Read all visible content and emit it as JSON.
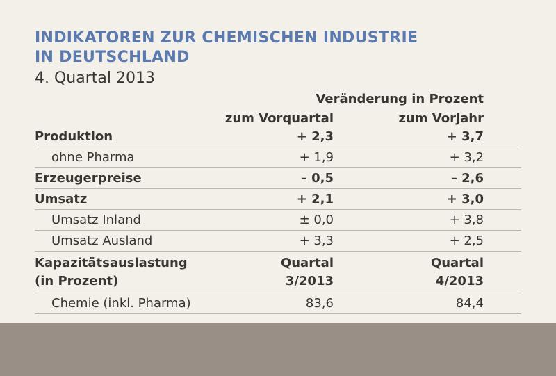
{
  "title": {
    "line1": "INDIKATOREN ZUR CHEMISCHEN INDUSTRIE",
    "line2": "IN DEUTSCHLAND"
  },
  "subtitle": "4. Quartal 2013",
  "header": {
    "main": "Veränderung in Prozent",
    "col1": "zum Vorquartal",
    "col2": "zum Vorjahr"
  },
  "rows": [
    {
      "label": "Produktion",
      "v1": "+ 2,3",
      "v2": "+ 3,7"
    },
    {
      "label": "ohne Pharma",
      "v1": "+ 1,9",
      "v2": "+ 3,2"
    },
    {
      "label": "Erzeugerpreise",
      "v1": "– 0,5",
      "v2": "– 2,6"
    },
    {
      "label": "Umsatz",
      "v1": "+ 2,1",
      "v2": "+ 3,0"
    },
    {
      "label": "Umsatz Inland",
      "v1": "± 0,0",
      "v2": "+ 3,8"
    },
    {
      "label": "Umsatz Ausland",
      "v1": "+ 3,3",
      "v2": "+ 2,5"
    }
  ],
  "capacity": {
    "label_line1": "Kapazitätsauslastung",
    "label_line2": "(in Prozent)",
    "col1_line1": "Quartal",
    "col1_line2": "3/2013",
    "col2_line1": "Quartal",
    "col2_line2": "4/2013"
  },
  "chemie": {
    "label": "Chemie (inkl. Pharma)",
    "v1": "83,6",
    "v2": "84,4"
  },
  "colors": {
    "title": "#5a7ab0",
    "background": "#f3efe9",
    "footer": "#9a8f86"
  }
}
